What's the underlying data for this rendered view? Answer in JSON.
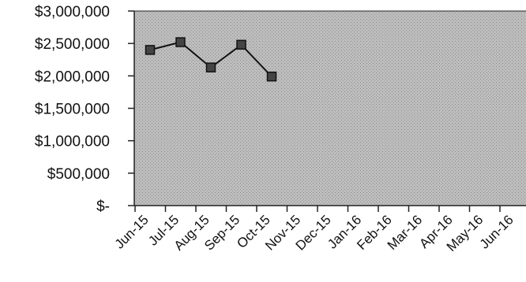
{
  "chart_data": {
    "type": "line",
    "title": "",
    "xlabel": "",
    "ylabel": "",
    "x": [
      "Jun-15",
      "Jul-15",
      "Aug-15",
      "Sep-15",
      "Oct-15",
      "Nov-15",
      "Dec-15",
      "Jan-16",
      "Feb-16",
      "Mar-16",
      "Apr-16",
      "May-16",
      "Jun-16"
    ],
    "series": [
      {
        "values": [
          2400000,
          2520000,
          2130000,
          2480000,
          1990000,
          null,
          null,
          null,
          null,
          null,
          null,
          null,
          null
        ]
      }
    ],
    "y_tick_values": [
      0,
      500000,
      1000000,
      1500000,
      2000000,
      2500000,
      3000000
    ],
    "y_tick_labels": [
      "$-",
      "$500,000",
      "$1,000,000",
      "$1,500,000",
      "$2,000,000",
      "$2,500,000",
      "$3,000,000"
    ],
    "ylim": [
      0,
      3000000
    ],
    "grid": false,
    "legend": "none",
    "plot_background": "#b0b0b0",
    "series_color": "#111111",
    "marker": "square"
  }
}
